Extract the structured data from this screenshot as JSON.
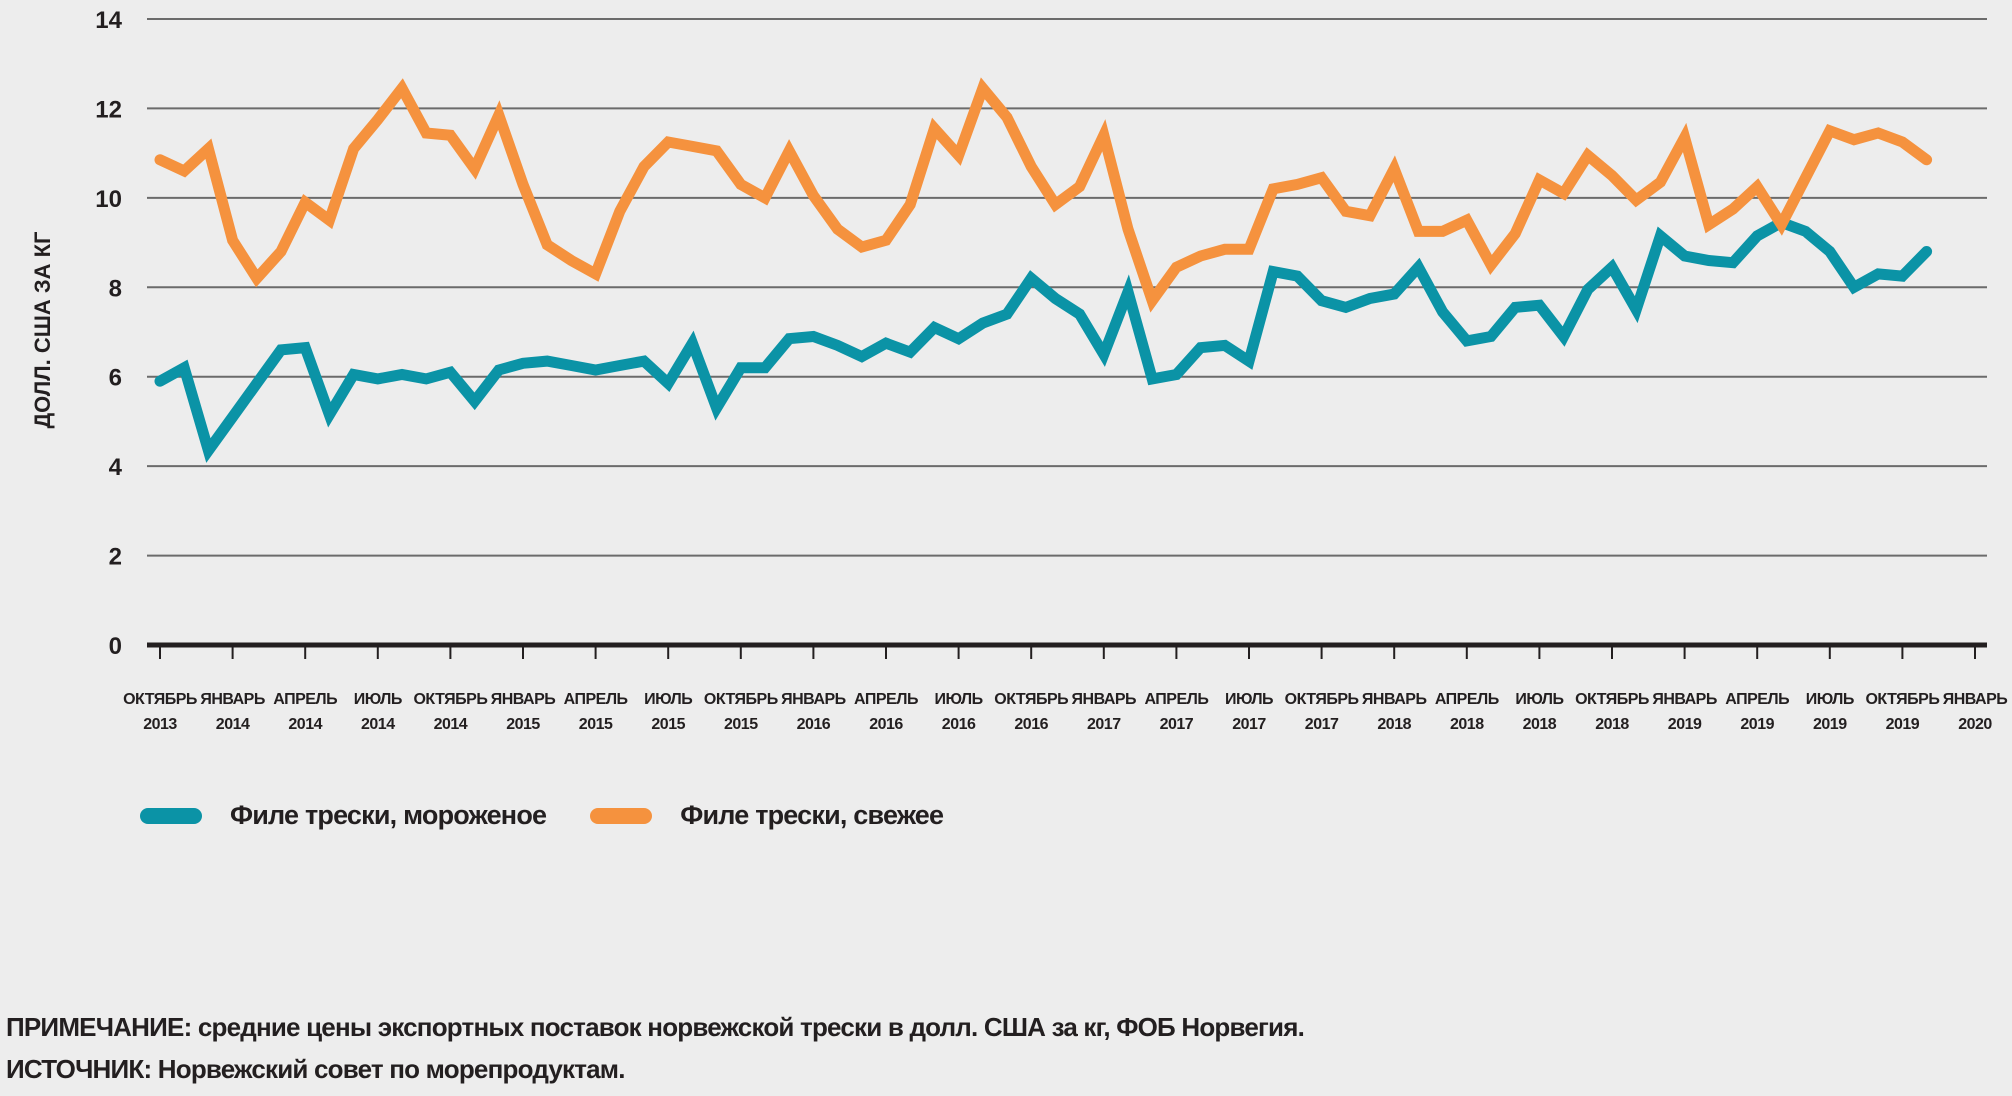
{
  "chart_data": {
    "type": "line",
    "title": "",
    "xlabel": "",
    "ylabel": "ДОЛЛ. США ЗА КГ",
    "ylim": [
      0,
      14
    ],
    "yticks": [
      0,
      2,
      4,
      6,
      8,
      10,
      12,
      14
    ],
    "grid": true,
    "legend_position": "bottom-left",
    "x_start": "2013-10",
    "x_ticks": [
      {
        "month": "ОКТЯБРЬ",
        "year": "2013"
      },
      {
        "month": "ЯНВАРЬ",
        "year": "2014"
      },
      {
        "month": "АПРЕЛЬ",
        "year": "2014"
      },
      {
        "month": "ИЮЛЬ",
        "year": "2014"
      },
      {
        "month": "ОКТЯБРЬ",
        "year": "2014"
      },
      {
        "month": "ЯНВАРЬ",
        "year": "2015"
      },
      {
        "month": "АПРЕЛЬ",
        "year": "2015"
      },
      {
        "month": "ИЮЛЬ",
        "year": "2015"
      },
      {
        "month": "ОКТЯБРЬ",
        "year": "2015"
      },
      {
        "month": "ЯНВАРЬ",
        "year": "2016"
      },
      {
        "month": "АПРЕЛЬ",
        "year": "2016"
      },
      {
        "month": "ИЮЛЬ",
        "year": "2016"
      },
      {
        "month": "ОКТЯБРЬ",
        "year": "2016"
      },
      {
        "month": "ЯНВАРЬ",
        "year": "2017"
      },
      {
        "month": "АПРЕЛЬ",
        "year": "2017"
      },
      {
        "month": "ИЮЛЬ",
        "year": "2017"
      },
      {
        "month": "ОКТЯБРЬ",
        "year": "2017"
      },
      {
        "month": "ЯНВАРЬ",
        "year": "2018"
      },
      {
        "month": "АПРЕЛЬ",
        "year": "2018"
      },
      {
        "month": "ИЮЛЬ",
        "year": "2018"
      },
      {
        "month": "ОКТЯБРЬ",
        "year": "2018"
      },
      {
        "month": "ЯНВАРЬ",
        "year": "2019"
      },
      {
        "month": "АПРЕЛЬ",
        "year": "2019"
      },
      {
        "month": "ИЮЛЬ",
        "year": "2019"
      },
      {
        "month": "ОКТЯБРЬ",
        "year": "2019"
      },
      {
        "month": "ЯНВАРЬ",
        "year": "2020"
      }
    ],
    "series": [
      {
        "name": "Филе трески, мороженое",
        "color": "#0b93a6",
        "values": [
          5.9,
          6.2,
          4.35,
          5.1,
          5.85,
          6.6,
          6.65,
          5.15,
          6.05,
          5.95,
          6.05,
          5.95,
          6.1,
          5.45,
          6.15,
          6.3,
          6.35,
          6.25,
          6.15,
          6.25,
          6.35,
          5.85,
          6.75,
          5.3,
          6.2,
          6.2,
          6.85,
          6.9,
          6.7,
          6.45,
          6.75,
          6.55,
          7.1,
          6.85,
          7.2,
          7.4,
          8.2,
          7.75,
          7.4,
          6.5,
          7.9,
          5.95,
          6.05,
          6.65,
          6.7,
          6.35,
          8.35,
          8.25,
          7.7,
          7.55,
          7.75,
          7.85,
          8.45,
          7.45,
          6.8,
          6.9,
          7.55,
          7.6,
          6.9,
          7.95,
          8.45,
          7.5,
          9.15,
          8.7,
          8.6,
          8.55,
          9.15,
          9.45,
          9.25,
          8.8,
          8.0,
          8.3,
          8.25,
          8.8
        ]
      },
      {
        "name": "Филе трески, свежее",
        "color": "#f5923e",
        "values": [
          10.85,
          10.6,
          11.1,
          9.05,
          8.2,
          8.8,
          9.9,
          9.5,
          11.1,
          11.75,
          12.45,
          11.45,
          11.4,
          10.65,
          11.85,
          10.3,
          8.95,
          8.6,
          8.3,
          9.7,
          10.7,
          11.25,
          11.15,
          11.05,
          10.3,
          10.0,
          11.05,
          10.05,
          9.3,
          8.9,
          9.05,
          9.85,
          11.55,
          10.95,
          12.45,
          11.8,
          10.7,
          9.85,
          10.25,
          11.4,
          9.3,
          7.7,
          8.45,
          8.7,
          8.85,
          8.85,
          10.2,
          10.3,
          10.45,
          9.7,
          9.6,
          10.65,
          9.25,
          9.25,
          9.5,
          8.5,
          9.2,
          10.4,
          10.1,
          10.95,
          10.5,
          9.95,
          10.35,
          11.35,
          9.4,
          9.75,
          10.25,
          9.4,
          10.45,
          11.5,
          11.3,
          11.45,
          11.25,
          10.85
        ]
      }
    ]
  },
  "legend": {
    "items": [
      {
        "label": "Филе трески, мороженое",
        "color": "#0b93a6"
      },
      {
        "label": "Филе трески, свежее",
        "color": "#f5923e"
      }
    ]
  },
  "notes": {
    "note": "ПРИМЕЧАНИЕ: средние цены экспортных поставок норвежской трески в долл. США за кг, ФОБ Норвегия.",
    "source": "ИСТОЧНИК: Норвежский совет по морепродуктам."
  }
}
